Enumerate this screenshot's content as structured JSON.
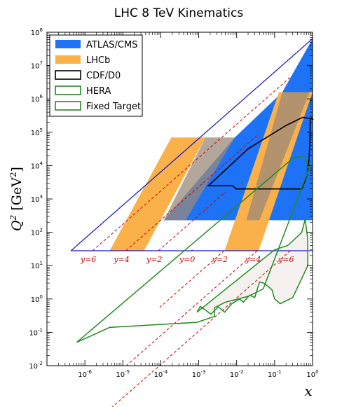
{
  "chart_data": {
    "type": "area",
    "title": "LHC 8 TeV Kinematics",
    "xlabel": "x",
    "ylabel": "Q^2 [GeV^2]",
    "xscale": "log",
    "yscale": "log",
    "xlim": [
      1e-07,
      1
    ],
    "ylim": [
      0.01,
      100000000
    ],
    "x_ticks": [
      {
        "value": 1e-06,
        "label": "10^-6"
      },
      {
        "value": 1e-05,
        "label": "10^-5"
      },
      {
        "value": 0.0001,
        "label": "10^-4"
      },
      {
        "value": 0.001,
        "label": "10^-3"
      },
      {
        "value": 0.01,
        "label": "10^-2"
      },
      {
        "value": 0.1,
        "label": "10^-1"
      },
      {
        "value": 1,
        "label": "10^0"
      }
    ],
    "y_ticks": [
      {
        "value": 0.01,
        "label": "10^-2"
      },
      {
        "value": 0.1,
        "label": "10^-1"
      },
      {
        "value": 1,
        "label": "10^0"
      },
      {
        "value": 10,
        "label": "10^1"
      },
      {
        "value": 100,
        "label": "10^2"
      },
      {
        "value": 1000,
        "label": "10^3"
      },
      {
        "value": 10000,
        "label": "10^4"
      },
      {
        "value": 100000,
        "label": "10^5"
      },
      {
        "value": 1000000,
        "label": "10^6"
      },
      {
        "value": 10000000,
        "label": "10^7"
      },
      {
        "value": 100000000,
        "label": "10^8"
      }
    ],
    "legend_position": "top-left",
    "series": [
      {
        "name": "ATLAS/CMS",
        "style": "filled",
        "color": "#1d72f5",
        "points": [
          [
            0.00012,
            230
          ],
          [
            0.018,
            230
          ],
          [
            1,
            230
          ],
          [
            1,
            64000000
          ],
          [
            0.16,
            1600000
          ],
          [
            0.0089,
            70000
          ],
          [
            0.00012,
            230
          ]
        ]
      },
      {
        "name": "LHCb",
        "style": "filled",
        "color": "#fbb14a",
        "points": [
          [
            4.5e-06,
            28
          ],
          [
            3.6e-05,
            28
          ],
          [
            0.0015,
            70000
          ],
          [
            0.00019,
            70000
          ]
        ]
      },
      {
        "name": "LHCb",
        "style": "filled",
        "color": "#fbb14a",
        "points": [
          [
            0.0048,
            28
          ],
          [
            0.038,
            28
          ],
          [
            1,
            1600000
          ],
          [
            0.13,
            1600000
          ]
        ]
      },
      {
        "name": "CDF/D0",
        "style": "outline",
        "color": "#000000",
        "points": [
          [
            0.0018,
            2500
          ],
          [
            0.0077,
            2500
          ],
          [
            0.0098,
            2000
          ],
          [
            0.52,
            2000
          ],
          [
            0.55,
            2300
          ],
          [
            0.62,
            3300
          ],
          [
            0.73,
            6000
          ],
          [
            0.81,
            15000
          ],
          [
            0.85,
            55000
          ],
          [
            0.87,
            250000
          ],
          [
            0.95,
            270000
          ],
          [
            1,
            250000
          ],
          [
            0.55,
            280000
          ],
          [
            0.2,
            160000
          ],
          [
            0.02,
            32000
          ],
          [
            0.0018,
            2500
          ]
        ]
      },
      {
        "name": "HERA",
        "style": "outline",
        "color": "#228b22",
        "points": [
          [
            6.1e-07,
            0.05
          ],
          [
            4.5e-06,
            0.14
          ],
          [
            0.0009,
            0.2
          ],
          [
            0.0026,
            0.3
          ],
          [
            0.0026,
            0.55
          ],
          [
            0.005,
            0.8
          ],
          [
            0.02,
            1.2
          ],
          [
            0.05,
            2.0
          ],
          [
            0.8,
            8000
          ],
          [
            0.62,
            20000
          ],
          [
            0.31,
            17000
          ],
          [
            6.1e-07,
            0.05
          ]
        ]
      },
      {
        "name": "Fixed Target",
        "style": "outline",
        "color": "#228b22",
        "points": [
          [
            0.0009,
            0.4
          ],
          [
            0.0011,
            0.6
          ],
          [
            0.0021,
            0.35
          ],
          [
            0.0033,
            0.58
          ],
          [
            0.0048,
            0.4
          ],
          [
            0.0075,
            0.72
          ],
          [
            0.012,
            1.0
          ],
          [
            0.015,
            0.8
          ],
          [
            0.022,
            1.3
          ],
          [
            0.03,
            1.1
          ],
          [
            0.04,
            3.2
          ],
          [
            0.052,
            3.0
          ],
          [
            0.085,
            1.9
          ],
          [
            0.1,
            1.0
          ],
          [
            0.14,
            0.72
          ],
          [
            0.3,
            1.1
          ],
          [
            0.75,
            10
          ],
          [
            0.75,
            60
          ],
          [
            0.64,
            250
          ],
          [
            0.52,
            100
          ],
          [
            0.3,
            55
          ],
          [
            0.22,
            40
          ],
          [
            0.1,
            30
          ],
          [
            0.0009,
            0.4
          ]
        ]
      }
    ],
    "beam_line_color": "#1010cc",
    "rapidity_curves": {
      "color": "#cc0000",
      "labels": [
        "y=6",
        "y=4",
        "y=2",
        "y=0",
        "y=2",
        "y=4",
        "y=6"
      ],
      "x_at_min": [
        1.6e-06,
        1.2e-05,
        8.7e-05,
        0.00064,
        0.0047,
        0.035,
        0.26
      ],
      "x_at_max": [
        4.8e-06,
        3.6e-05,
        0.00026,
        0.0019,
        0.014,
        0.1,
        0.78
      ]
    }
  }
}
